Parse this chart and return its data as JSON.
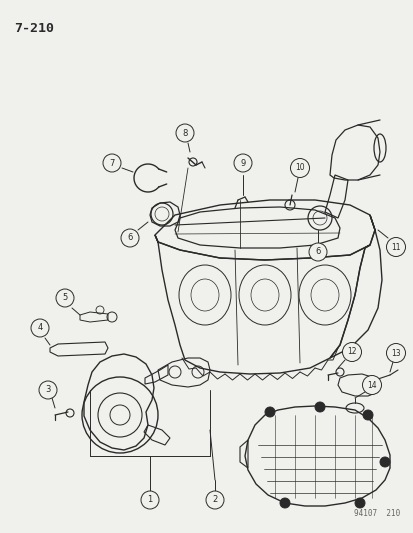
{
  "title": "7−2‘1‘0",
  "title_text": "7-210",
  "footer": "94107  210",
  "bg_color": "#f0f0ec",
  "line_color": "#2a2a2a",
  "fig_width": 4.14,
  "fig_height": 5.33,
  "dpi": 100
}
